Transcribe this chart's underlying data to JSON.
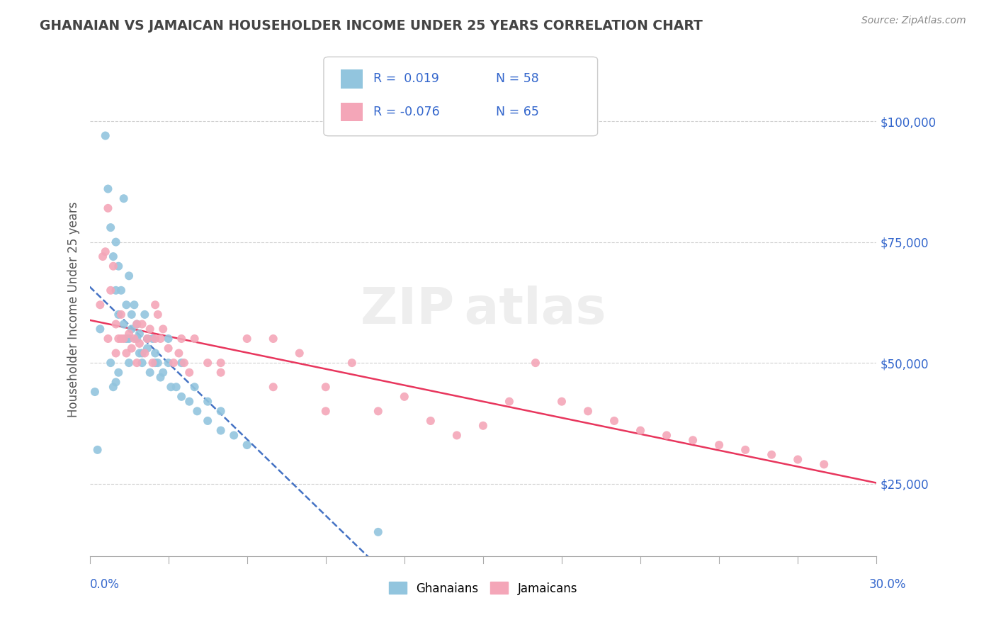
{
  "title": "GHANAIAN VS JAMAICAN HOUSEHOLDER INCOME UNDER 25 YEARS CORRELATION CHART",
  "source": "Source: ZipAtlas.com",
  "ylabel": "Householder Income Under 25 years",
  "xlim": [
    0.0,
    0.3
  ],
  "ylim": [
    10000,
    112000
  ],
  "yticks": [
    25000,
    50000,
    75000,
    100000
  ],
  "ytick_labels": [
    "$25,000",
    "$50,000",
    "$75,000",
    "$100,000"
  ],
  "r_ghana": 0.019,
  "n_ghana": 58,
  "r_jamaica": -0.076,
  "n_jamaica": 65,
  "ghanaian_color": "#92c5de",
  "jamaican_color": "#f4a6b8",
  "trendline_ghana_color": "#4472c4",
  "trendline_jamaica_color": "#e8365d",
  "background_color": "#ffffff",
  "grid_color": "#d0d0d0",
  "ghana_x": [
    0.004,
    0.006,
    0.013,
    0.007,
    0.008,
    0.009,
    0.01,
    0.01,
    0.011,
    0.011,
    0.012,
    0.013,
    0.014,
    0.014,
    0.015,
    0.015,
    0.016,
    0.016,
    0.017,
    0.018,
    0.018,
    0.019,
    0.019,
    0.02,
    0.021,
    0.022,
    0.022,
    0.023,
    0.024,
    0.025,
    0.026,
    0.027,
    0.028,
    0.03,
    0.031,
    0.008,
    0.009,
    0.01,
    0.011,
    0.015,
    0.02,
    0.025,
    0.03,
    0.035,
    0.04,
    0.045,
    0.11,
    0.002,
    0.003,
    0.033,
    0.035,
    0.038,
    0.041,
    0.045,
    0.05,
    0.055,
    0.06,
    0.05
  ],
  "ghana_y": [
    57000,
    97000,
    84000,
    86000,
    78000,
    72000,
    75000,
    65000,
    70000,
    60000,
    65000,
    58000,
    62000,
    55000,
    68000,
    55000,
    60000,
    57000,
    62000,
    55000,
    58000,
    52000,
    56000,
    50000,
    60000,
    53000,
    55000,
    48000,
    55000,
    52000,
    50000,
    47000,
    48000,
    50000,
    45000,
    50000,
    45000,
    46000,
    48000,
    50000,
    52000,
    50000,
    55000,
    50000,
    45000,
    42000,
    15000,
    44000,
    32000,
    45000,
    43000,
    42000,
    40000,
    38000,
    36000,
    35000,
    33000,
    40000
  ],
  "jamaica_x": [
    0.004,
    0.006,
    0.007,
    0.008,
    0.009,
    0.01,
    0.01,
    0.011,
    0.012,
    0.013,
    0.014,
    0.015,
    0.016,
    0.017,
    0.018,
    0.019,
    0.02,
    0.021,
    0.022,
    0.023,
    0.024,
    0.025,
    0.026,
    0.027,
    0.028,
    0.03,
    0.032,
    0.034,
    0.036,
    0.038,
    0.04,
    0.045,
    0.05,
    0.06,
    0.07,
    0.08,
    0.09,
    0.1,
    0.11,
    0.12,
    0.13,
    0.14,
    0.15,
    0.16,
    0.17,
    0.18,
    0.19,
    0.2,
    0.21,
    0.22,
    0.23,
    0.24,
    0.25,
    0.26,
    0.27,
    0.28,
    0.005,
    0.007,
    0.012,
    0.018,
    0.025,
    0.035,
    0.05,
    0.07,
    0.09
  ],
  "jamaica_y": [
    62000,
    73000,
    55000,
    65000,
    70000,
    58000,
    52000,
    55000,
    60000,
    55000,
    52000,
    56000,
    53000,
    55000,
    50000,
    54000,
    58000,
    52000,
    55000,
    57000,
    50000,
    55000,
    60000,
    55000,
    57000,
    53000,
    50000,
    52000,
    50000,
    48000,
    55000,
    50000,
    48000,
    55000,
    55000,
    52000,
    45000,
    50000,
    40000,
    43000,
    38000,
    35000,
    37000,
    42000,
    50000,
    42000,
    40000,
    38000,
    36000,
    35000,
    34000,
    33000,
    32000,
    31000,
    30000,
    29000,
    72000,
    82000,
    55000,
    58000,
    62000,
    55000,
    50000,
    45000,
    40000
  ]
}
